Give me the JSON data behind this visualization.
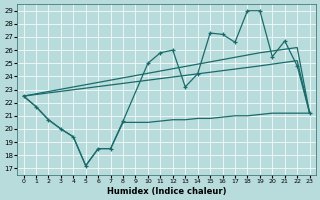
{
  "xlabel": "Humidex (Indice chaleur)",
  "xlim": [
    -0.5,
    23.5
  ],
  "ylim": [
    16.5,
    29.5
  ],
  "yticks": [
    17,
    18,
    19,
    20,
    21,
    22,
    23,
    24,
    25,
    26,
    27,
    28,
    29
  ],
  "xticks": [
    0,
    1,
    2,
    3,
    4,
    5,
    6,
    7,
    8,
    9,
    10,
    11,
    12,
    13,
    14,
    15,
    16,
    17,
    18,
    19,
    20,
    21,
    22,
    23
  ],
  "bg_color": "#b8dcdc",
  "grid_color": "#ffffff",
  "line_color": "#1a6b6b",
  "zigzag_x": [
    0,
    1,
    2,
    3,
    4,
    5,
    6,
    7,
    8,
    10,
    11,
    12,
    13,
    14,
    15,
    16,
    17,
    18,
    19,
    20,
    21,
    22,
    23
  ],
  "zigzag_y": [
    22.5,
    21.7,
    20.7,
    20.0,
    19.4,
    17.2,
    18.5,
    18.5,
    20.6,
    25.0,
    25.8,
    26.0,
    23.2,
    24.2,
    27.3,
    27.2,
    26.6,
    29.0,
    29.0,
    25.5,
    26.7,
    24.8,
    21.2
  ],
  "upper_line_x": [
    0,
    19,
    22,
    23
  ],
  "upper_line_y": [
    22.5,
    25.8,
    26.2,
    21.2
  ],
  "mid_line_x": [
    0,
    19,
    22,
    23
  ],
  "mid_line_y": [
    22.5,
    24.8,
    25.2,
    21.2
  ],
  "lower_line_x": [
    0,
    1,
    2,
    3,
    4,
    5,
    6,
    7,
    8,
    9,
    10,
    11,
    12,
    13,
    14,
    15,
    16,
    17,
    18,
    19,
    20,
    21,
    22,
    23
  ],
  "lower_line_y": [
    22.5,
    21.7,
    20.7,
    20.0,
    19.4,
    17.2,
    18.5,
    18.5,
    20.5,
    20.5,
    20.5,
    20.6,
    20.7,
    20.7,
    20.8,
    20.8,
    20.9,
    21.0,
    21.0,
    21.1,
    21.2,
    21.2,
    21.2,
    21.2
  ]
}
